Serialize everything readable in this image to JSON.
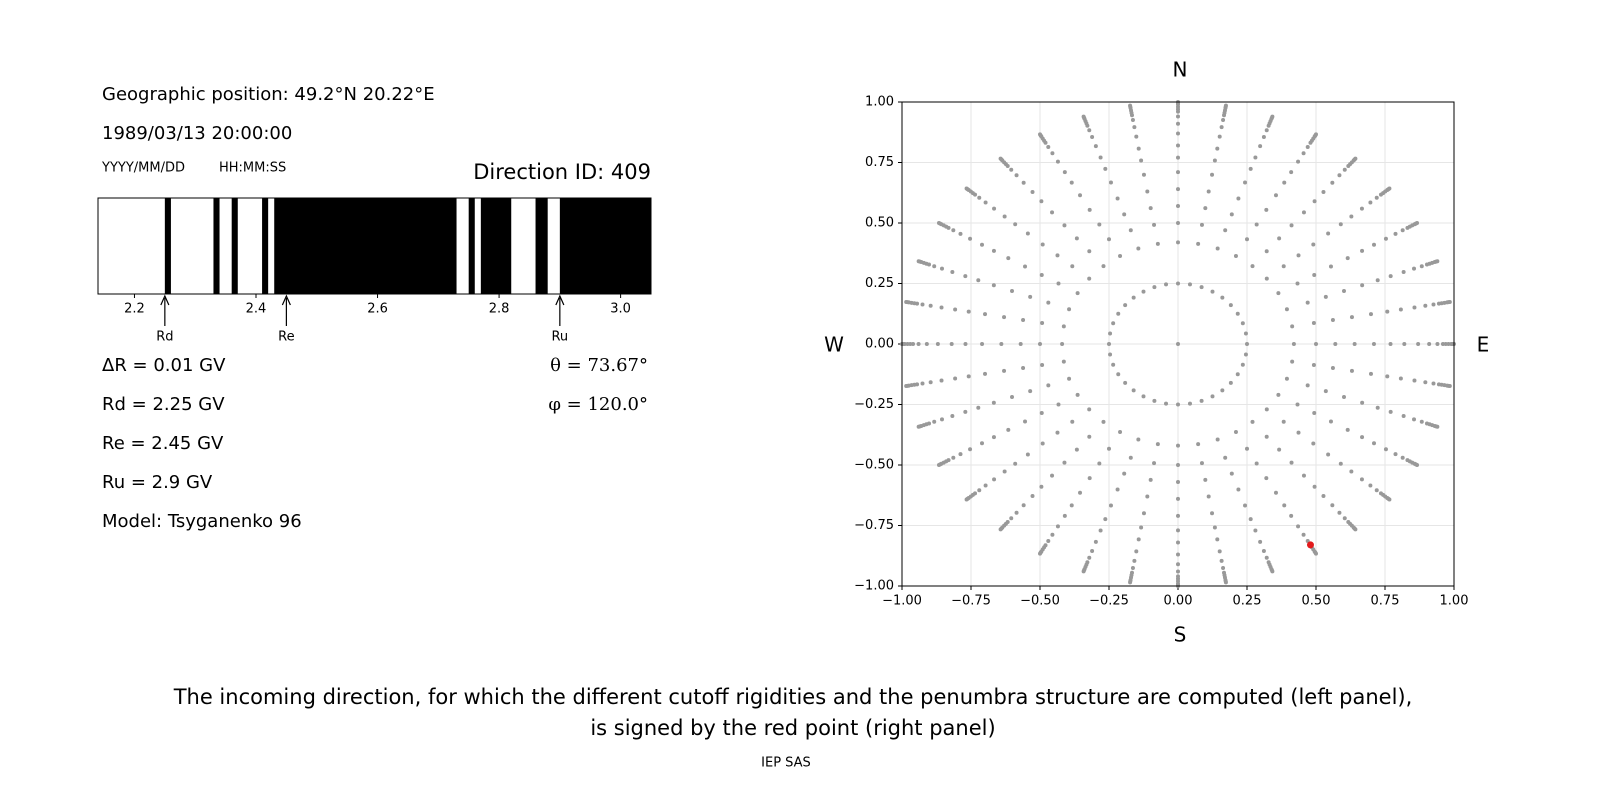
{
  "left_panel": {
    "position": "Geographic position: 49.2°N 20.22°E",
    "datetime": "1989/03/13 20:00:00",
    "date_format": "YYYY/MM/DD",
    "time_format": "HH:MM:SS",
    "direction_id": "Direction ID: 409",
    "lines": [
      "ΔR = 0.01 GV",
      "Rd = 2.25 GV",
      "Re = 2.45 GV",
      "Ru = 2.9 GV",
      "Model: Tsyganenko 96"
    ],
    "angles": [
      "θ = 73.67°",
      "φ = 120.0°"
    ]
  },
  "chart_data": [
    {
      "type": "penumbra",
      "xlim": [
        2.14,
        3.05
      ],
      "xticks": [
        2.2,
        2.4,
        2.6,
        2.8,
        {
          "value": 3,
          "label": "3.0"
        }
      ],
      "forbidden_bands": [
        [
          2.25,
          2.26
        ],
        [
          2.33,
          2.34
        ],
        [
          2.36,
          2.37
        ],
        [
          2.41,
          2.42
        ],
        [
          2.43,
          2.73
        ],
        [
          2.75,
          2.76
        ],
        [
          2.77,
          2.82
        ],
        [
          2.86,
          2.88
        ],
        [
          2.9,
          3.05
        ]
      ],
      "band_color": "#000000",
      "markers": [
        {
          "label": "Rd",
          "value": 2.25
        },
        {
          "label": "Re",
          "value": 2.45
        },
        {
          "label": "Ru",
          "value": 2.9
        }
      ]
    },
    {
      "type": "scatter",
      "xlim": [
        -1,
        1
      ],
      "ylim": [
        -1,
        1
      ],
      "xticks": [
        {
          "value": -1,
          "label": "−1.00"
        },
        {
          "value": -0.75,
          "label": "−0.75"
        },
        {
          "value": -0.5,
          "label": "−0.50"
        },
        {
          "value": -0.25,
          "label": "−0.25"
        },
        {
          "value": 0,
          "label": "0.00"
        },
        {
          "value": 0.25,
          "label": "0.25"
        },
        {
          "value": 0.5,
          "label": "0.50"
        },
        {
          "value": 0.75,
          "label": "0.75"
        },
        {
          "value": 1,
          "label": "1.00"
        }
      ],
      "yticks": [
        {
          "value": -1,
          "label": "−1.00"
        },
        {
          "value": -0.75,
          "label": "−0.75"
        },
        {
          "value": -0.5,
          "label": "−0.50"
        },
        {
          "value": -0.25,
          "label": "−0.25"
        },
        {
          "value": 0,
          "label": "0.00"
        },
        {
          "value": 0.25,
          "label": "0.25"
        },
        {
          "value": 0.5,
          "label": "0.50"
        },
        {
          "value": 0.75,
          "label": "0.75"
        },
        {
          "value": 1,
          "label": "1.00"
        }
      ],
      "grid": true,
      "compass": {
        "north": "N",
        "south": "S",
        "west": "W",
        "east": "E"
      },
      "directions": {
        "color": "#999999",
        "radii": [
          0.25,
          0.42,
          0.5,
          0.57,
          0.64,
          0.71,
          0.77,
          0.82,
          0.87,
          0.91,
          0.94,
          0.96,
          0.97,
          0.98,
          0.99,
          0.995,
          1.0
        ],
        "azimuths": [
          0,
          10,
          20,
          30,
          40,
          50,
          60,
          70,
          80,
          90,
          100,
          110,
          120,
          130,
          140,
          150,
          160,
          170,
          180,
          190,
          200,
          210,
          220,
          230,
          240,
          250,
          260,
          270,
          280,
          290,
          300,
          310,
          320,
          330,
          340,
          350
        ],
        "center": {
          "x": 0,
          "y": 0
        }
      },
      "selected": {
        "x": 0.48,
        "y": -0.83,
        "color": "#e31a1c"
      }
    }
  ],
  "caption": [
    "The incoming direction, for which the different cutoff rigidities and the penumbra structure are computed (left panel),",
    "is signed by the red point (right panel)"
  ],
  "footer": "IEP SAS"
}
